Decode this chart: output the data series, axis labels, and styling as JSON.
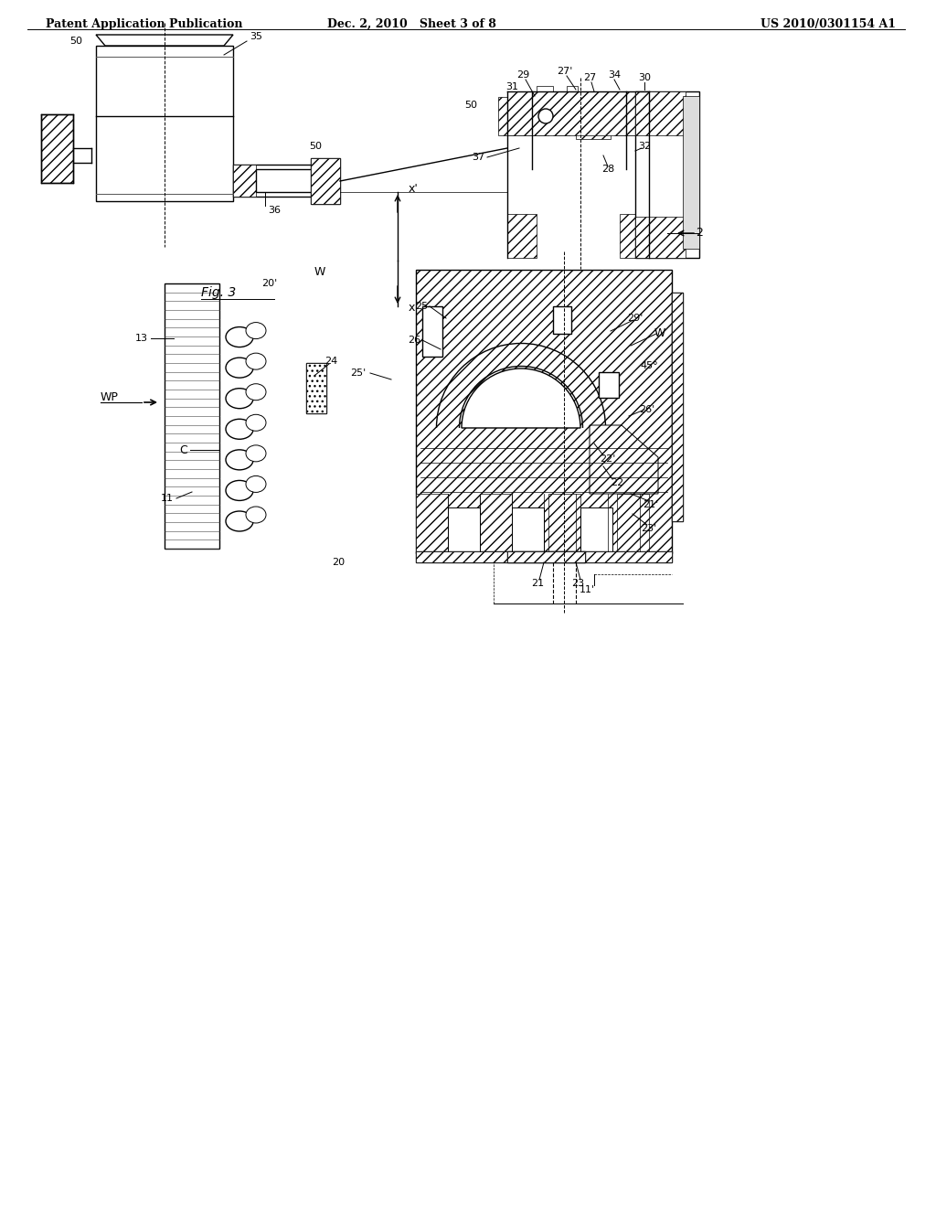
{
  "title_left": "Patent Application Publication",
  "title_center": "Dec. 2, 2010   Sheet 3 of 8",
  "title_right": "US 2010/0301154 A1",
  "fig_label": "Fig. 3",
  "background_color": "#ffffff",
  "line_color": "#000000",
  "hatch_color": "#000000",
  "page_width": 10.24,
  "page_height": 13.2
}
